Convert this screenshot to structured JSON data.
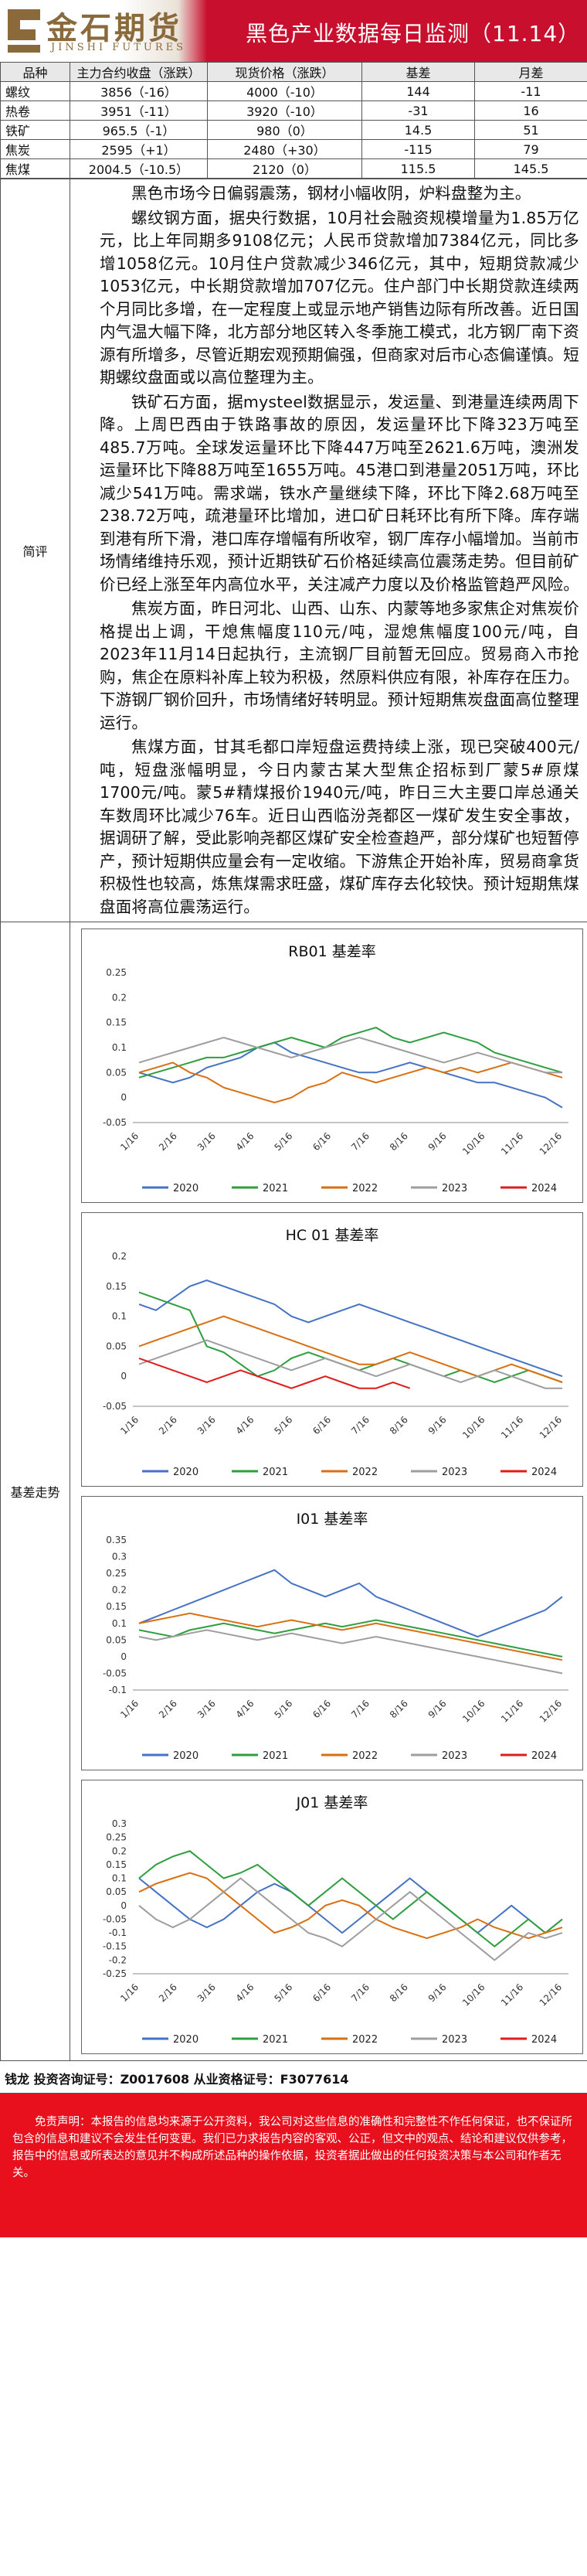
{
  "header": {
    "logo_cn": "金石期货",
    "logo_en": "JINSHI FUTURES",
    "title": "黑色产业数据每日监测（11.14）"
  },
  "price_table": {
    "headers": [
      "品种",
      "主力合约收盘（涨跌）",
      "现货价格（涨跌）",
      "基差",
      "月差"
    ],
    "rows": [
      [
        "螺纹",
        "3856（-16）",
        "4000（-10）",
        "144",
        "-11"
      ],
      [
        "热卷",
        "3951（-11）",
        "3920（-10）",
        "-31",
        "16"
      ],
      [
        "铁矿",
        "965.5（-1）",
        "980（0）",
        "14.5",
        "51"
      ],
      [
        "焦炭",
        "2595（+1）",
        "2480（+30）",
        "-115",
        "79"
      ],
      [
        "焦煤",
        "2004.5（-10.5）",
        "2120（0）",
        "115.5",
        "145.5"
      ]
    ]
  },
  "commentary": {
    "label": "简评",
    "paragraphs": [
      "黑色市场今日偏弱震荡，钢材小幅收阴，炉料盘整为主。",
      "螺纹钢方面，据央行数据，10月社会融资规模增量为1.85万亿元，比上年同期多9108亿元；人民币贷款增加7384亿元，同比多增1058亿元。10月住户贷款减少346亿元，其中，短期贷款减少1053亿元，中长期贷款增加707亿元。住户部门中长期贷款连续两个月同比多增，在一定程度上或显示地产销售边际有所改善。近日国内气温大幅下降，北方部分地区转入冬季施工模式，北方钢厂南下资源有所增多，尽管近期宏观预期偏强，但商家对后市心态偏谨慎。短期螺纹盘面或以高位整理为主。",
      "铁矿石方面，据mysteel数据显示，发运量、到港量连续两周下降。上周巴西由于铁路事故的原因，发运量环比下降323万吨至485.7万吨。全球发运量环比下降447万吨至2621.6万吨，澳洲发运量环比下降88万吨至1655万吨。45港口到港量2051万吨，环比减少541万吨。需求端，铁水产量继续下降，环比下降2.68万吨至238.72万吨，疏港量环比增加，进口矿日耗环比有所下降。库存端到港有所下滑，港口库存增幅有所收窄，钢厂库存小幅增加。当前市场情绪维持乐观，预计近期铁矿石价格延续高位震荡走势。但目前矿价已经上涨至年内高位水平，关注减产力度以及价格监管趋严风险。",
      "焦炭方面，昨日河北、山西、山东、内蒙等地多家焦企对焦炭价格提出上调，干熄焦幅度110元/吨，湿熄焦幅度100元/吨，自2023年11月14日起执行，主流钢厂目前暂无回应。贸易商入市抢购，焦企在原料补库上较为积极，然原料供应有限，补库存在压力。下游钢厂钢价回升，市场情绪好转明显。预计短期焦炭盘面高位整理运行。",
      "焦煤方面，甘其毛都口岸短盘运费持续上涨，现已突破400元/吨，短盘涨幅明显，今日内蒙古某大型焦企招标到厂蒙5#原煤1700元/吨。蒙5#精煤报价1940元/吨，昨日三大主要口岸总通关车数周环比减少76车。近日山西临汾尧都区一煤矿发生安全事故，据调研了解，受此影响尧都区煤矿安全检查趋严，部分煤矿也短暂停产，预计短期供应量会有一定收缩。下游焦企开始补库，贸易商拿货积极性也较高，炼焦煤需求旺盛，煤矿库存去化较快。预计短期焦煤盘面将高位震荡运行。"
    ]
  },
  "basis_section": {
    "label": "基差走势"
  },
  "chart_data": [
    {
      "type": "line",
      "title": "RB01 基差率",
      "ylim": [
        -0.05,
        0.25
      ],
      "y_ticks": [
        "0.25",
        "0.2",
        "0.15",
        "0.1",
        "0.05",
        "0",
        "-0.05"
      ],
      "x_ticks": [
        "1/16",
        "2/16",
        "3/16",
        "4/16",
        "5/16",
        "6/16",
        "7/16",
        "8/16",
        "9/16",
        "10/16",
        "11/16",
        "12/16"
      ],
      "series": [
        {
          "name": "2020",
          "color": "#4472c4",
          "values": [
            0.05,
            0.04,
            0.03,
            0.04,
            0.06,
            0.07,
            0.08,
            0.1,
            0.11,
            0.09,
            0.08,
            0.07,
            0.06,
            0.05,
            0.05,
            0.06,
            0.07,
            0.06,
            0.05,
            0.04,
            0.03,
            0.03,
            0.02,
            0.01,
            0.0,
            -0.02
          ]
        },
        {
          "name": "2021",
          "color": "#2e9e3e",
          "values": [
            0.04,
            0.05,
            0.06,
            0.07,
            0.08,
            0.08,
            0.09,
            0.1,
            0.11,
            0.12,
            0.11,
            0.1,
            0.12,
            0.13,
            0.14,
            0.12,
            0.11,
            0.12,
            0.13,
            0.12,
            0.11,
            0.09,
            0.08,
            0.07,
            0.06,
            0.05
          ]
        },
        {
          "name": "2022",
          "color": "#d96f10",
          "values": [
            0.05,
            0.06,
            0.07,
            0.05,
            0.04,
            0.02,
            0.01,
            0.0,
            -0.01,
            0.0,
            0.02,
            0.03,
            0.05,
            0.04,
            0.03,
            0.04,
            0.05,
            0.06,
            0.05,
            0.06,
            0.05,
            0.06,
            0.07,
            0.06,
            0.05,
            0.04
          ]
        },
        {
          "name": "2023",
          "color": "#9e9e9e",
          "values": [
            0.07,
            0.08,
            0.09,
            0.1,
            0.11,
            0.12,
            0.11,
            0.1,
            0.09,
            0.08,
            0.09,
            0.1,
            0.11,
            0.12,
            0.11,
            0.1,
            0.09,
            0.08,
            0.07,
            0.08,
            0.09,
            0.08,
            0.07,
            0.06,
            0.05,
            0.05
          ]
        },
        {
          "name": "2024",
          "color": "#e01b1b",
          "values": []
        }
      ]
    },
    {
      "type": "line",
      "title": "HC 01 基差率",
      "ylim": [
        -0.05,
        0.2
      ],
      "y_ticks": [
        "0.2",
        "0.15",
        "0.1",
        "0.05",
        "0",
        "-0.05"
      ],
      "x_ticks": [
        "1/16",
        "2/16",
        "3/16",
        "4/16",
        "5/16",
        "6/16",
        "7/16",
        "8/16",
        "9/16",
        "10/16",
        "11/16",
        "12/16"
      ],
      "series": [
        {
          "name": "2020",
          "color": "#4472c4",
          "values": [
            0.12,
            0.11,
            0.13,
            0.15,
            0.16,
            0.15,
            0.14,
            0.13,
            0.12,
            0.1,
            0.09,
            0.1,
            0.11,
            0.12,
            0.11,
            0.1,
            0.09,
            0.08,
            0.07,
            0.06,
            0.05,
            0.04,
            0.03,
            0.02,
            0.01,
            0.0
          ]
        },
        {
          "name": "2021",
          "color": "#2e9e3e",
          "values": [
            0.14,
            0.13,
            0.12,
            0.11,
            0.05,
            0.04,
            0.02,
            0.0,
            0.01,
            0.03,
            0.04,
            0.03,
            0.02,
            0.01,
            0.02,
            0.03,
            0.02,
            0.01,
            0.0,
            0.01,
            0.0,
            -0.01,
            0.0,
            0.01,
            0.0,
            -0.01
          ]
        },
        {
          "name": "2022",
          "color": "#d96f10",
          "values": [
            0.05,
            0.06,
            0.07,
            0.08,
            0.09,
            0.1,
            0.09,
            0.08,
            0.07,
            0.06,
            0.05,
            0.04,
            0.03,
            0.02,
            0.02,
            0.03,
            0.04,
            0.03,
            0.02,
            0.01,
            0.0,
            0.01,
            0.02,
            0.01,
            0.0,
            -0.01
          ]
        },
        {
          "name": "2023",
          "color": "#9e9e9e",
          "values": [
            0.02,
            0.03,
            0.04,
            0.05,
            0.06,
            0.05,
            0.04,
            0.03,
            0.02,
            0.01,
            0.02,
            0.03,
            0.02,
            0.01,
            0.0,
            0.01,
            0.02,
            0.01,
            0.0,
            -0.01,
            0.0,
            0.01,
            0.0,
            -0.01,
            -0.02,
            -0.02
          ]
        },
        {
          "name": "2024",
          "color": "#e01b1b",
          "values": [
            0.03,
            0.02,
            0.01,
            0.0,
            -0.01,
            0.0,
            0.01,
            0.0,
            -0.01,
            -0.02,
            -0.01,
            0.0,
            -0.01,
            -0.02,
            -0.02,
            -0.01,
            -0.02
          ]
        }
      ]
    },
    {
      "type": "line",
      "title": "I01 基差率",
      "ylim": [
        -0.1,
        0.35
      ],
      "y_ticks": [
        "0.35",
        "0.3",
        "0.25",
        "0.2",
        "0.15",
        "0.1",
        "0.05",
        "0",
        "-0.05",
        "-0.1"
      ],
      "x_ticks": [
        "1/16",
        "2/16",
        "3/16",
        "4/16",
        "5/16",
        "6/16",
        "7/16",
        "8/16",
        "9/16",
        "10/16",
        "11/16",
        "12/16"
      ],
      "series": [
        {
          "name": "2020",
          "color": "#4472c4",
          "values": [
            0.1,
            0.12,
            0.14,
            0.16,
            0.18,
            0.2,
            0.22,
            0.24,
            0.26,
            0.22,
            0.2,
            0.18,
            0.2,
            0.22,
            0.18,
            0.16,
            0.14,
            0.12,
            0.1,
            0.08,
            0.06,
            0.08,
            0.1,
            0.12,
            0.14,
            0.18
          ]
        },
        {
          "name": "2021",
          "color": "#2e9e3e",
          "values": [
            0.08,
            0.07,
            0.06,
            0.08,
            0.09,
            0.1,
            0.09,
            0.08,
            0.07,
            0.08,
            0.09,
            0.1,
            0.09,
            0.1,
            0.11,
            0.1,
            0.09,
            0.08,
            0.07,
            0.06,
            0.05,
            0.04,
            0.03,
            0.02,
            0.01,
            0.0
          ]
        },
        {
          "name": "2022",
          "color": "#d96f10",
          "values": [
            0.1,
            0.11,
            0.12,
            0.13,
            0.12,
            0.11,
            0.1,
            0.09,
            0.1,
            0.11,
            0.1,
            0.09,
            0.08,
            0.09,
            0.1,
            0.09,
            0.08,
            0.07,
            0.06,
            0.05,
            0.04,
            0.03,
            0.02,
            0.01,
            0.0,
            -0.01
          ]
        },
        {
          "name": "2023",
          "color": "#9e9e9e",
          "values": [
            0.06,
            0.05,
            0.06,
            0.07,
            0.08,
            0.07,
            0.06,
            0.05,
            0.06,
            0.07,
            0.06,
            0.05,
            0.04,
            0.05,
            0.06,
            0.05,
            0.04,
            0.03,
            0.02,
            0.01,
            0.0,
            -0.01,
            -0.02,
            -0.03,
            -0.04,
            -0.05
          ]
        },
        {
          "name": "2024",
          "color": "#e01b1b",
          "values": []
        }
      ]
    },
    {
      "type": "line",
      "title": "J01 基差率",
      "ylim": [
        -0.25,
        0.3
      ],
      "y_ticks": [
        "0.3",
        "0.25",
        "0.2",
        "0.15",
        "0.1",
        "0.05",
        "0",
        "-0.05",
        "-0.1",
        "-0.15",
        "-0.2",
        "-0.25"
      ],
      "x_ticks": [
        "1/16",
        "2/16",
        "3/16",
        "4/16",
        "5/16",
        "6/16",
        "7/16",
        "8/16",
        "9/16",
        "10/16",
        "11/16",
        "12/16"
      ],
      "series": [
        {
          "name": "2020",
          "color": "#4472c4",
          "values": [
            0.1,
            0.05,
            0.0,
            -0.05,
            -0.08,
            -0.05,
            0.0,
            0.05,
            0.08,
            0.05,
            0.0,
            -0.05,
            -0.1,
            -0.05,
            0.0,
            0.05,
            0.1,
            0.05,
            0.0,
            -0.05,
            -0.1,
            -0.05,
            0.0,
            -0.05,
            -0.1,
            -0.05
          ]
        },
        {
          "name": "2021",
          "color": "#2e9e3e",
          "values": [
            0.1,
            0.15,
            0.18,
            0.2,
            0.15,
            0.1,
            0.12,
            0.15,
            0.1,
            0.05,
            0.0,
            0.05,
            0.1,
            0.05,
            0.0,
            -0.05,
            0.0,
            0.05,
            0.0,
            -0.05,
            -0.1,
            -0.15,
            -0.1,
            -0.05,
            -0.1,
            -0.05
          ]
        },
        {
          "name": "2022",
          "color": "#d96f10",
          "values": [
            0.05,
            0.08,
            0.1,
            0.12,
            0.1,
            0.05,
            0.0,
            -0.05,
            -0.1,
            -0.08,
            -0.05,
            0.0,
            0.02,
            0.0,
            -0.05,
            -0.08,
            -0.1,
            -0.12,
            -0.1,
            -0.08,
            -0.05,
            -0.08,
            -0.1,
            -0.12,
            -0.1,
            -0.08
          ]
        },
        {
          "name": "2023",
          "color": "#9e9e9e",
          "values": [
            0.0,
            -0.05,
            -0.08,
            -0.05,
            0.0,
            0.05,
            0.1,
            0.05,
            0.0,
            -0.05,
            -0.1,
            -0.12,
            -0.15,
            -0.1,
            -0.05,
            0.0,
            0.05,
            0.0,
            -0.05,
            -0.1,
            -0.15,
            -0.2,
            -0.15,
            -0.1,
            -0.12,
            -0.1
          ]
        },
        {
          "name": "2024",
          "color": "#e01b1b",
          "values": []
        }
      ]
    }
  ],
  "footer": {
    "analyst": "钱龙 投资咨询证号：Z0017608 从业资格证号：F3077614",
    "disclaimer": "免责声明：本报告的信息均来源于公开资料，我公司对这些信息的准确性和完整性不作任何保证，也不保证所包含的信息和建议不会发生任何变更。我们已力求报告内容的客观、公正，但文中的观点、结论和建议仅供参考，报告中的信息或所表达的意见并不构成所述品种的操作依据，投资者据此做出的任何投资决策与本公司和作者无关。"
  }
}
